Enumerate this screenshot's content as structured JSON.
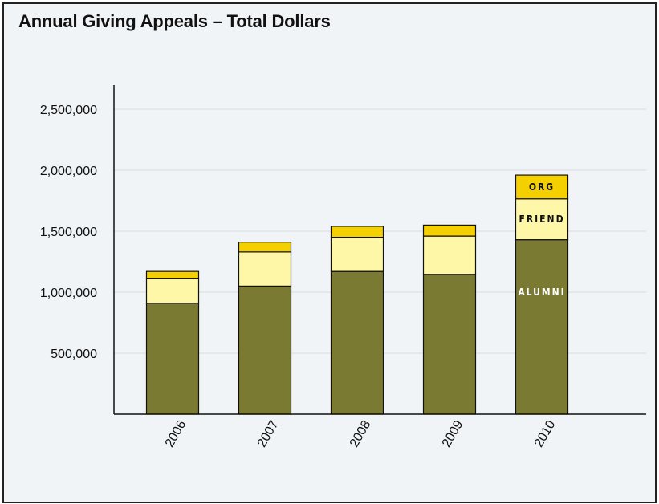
{
  "title": "Annual Giving Appeals – Total Dollars",
  "chart_data": {
    "type": "bar",
    "stacked": true,
    "title": "Annual Giving Appeals – Total Dollars",
    "xlabel": "",
    "ylabel": "",
    "categories": [
      "2006",
      "2007",
      "2008",
      "2009",
      "2010"
    ],
    "series": [
      {
        "name": "ALUMNI",
        "values": [
          910000,
          1050000,
          1170000,
          1145000,
          1430000
        ],
        "color": "#7b7a32"
      },
      {
        "name": "FRIEND",
        "values": [
          200000,
          280000,
          280000,
          315000,
          335000
        ],
        "color": "#fff7a8"
      },
      {
        "name": "ORG",
        "values": [
          60000,
          80000,
          90000,
          90000,
          195000
        ],
        "color": "#f5d000"
      }
    ],
    "yticks": [
      500000,
      1000000,
      1500000,
      2000000,
      2500000
    ],
    "ytick_labels": [
      "500,000",
      "1,000,000",
      "1,500,000",
      "2,000,000",
      "2,500,000"
    ],
    "ylim": [
      0,
      2700000
    ],
    "grid": true,
    "legend": "inline labels on 2010 bar"
  }
}
